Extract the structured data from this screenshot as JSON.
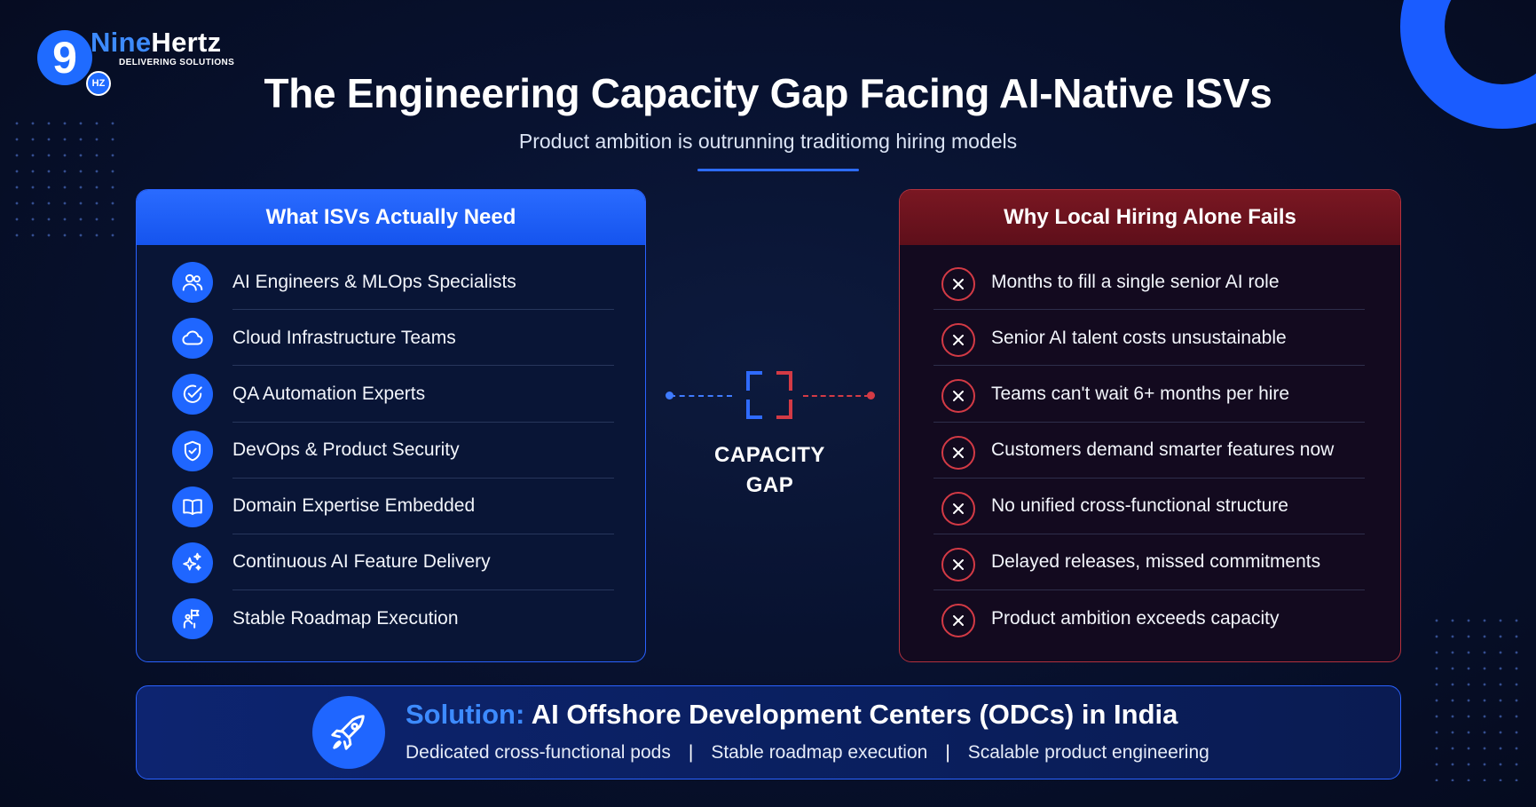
{
  "logo": {
    "badge_digit": "9",
    "name_part1": "Nine",
    "name_part2": "Hertz",
    "badge_small": "HZ",
    "tagline": "DELIVERING SOLUTIONS"
  },
  "header": {
    "title": "The Engineering Capacity Gap Facing AI-Native ISVs",
    "subtitle": "Product ambition is outrunning traditiomg hiring models"
  },
  "needs_panel": {
    "heading": "What ISVs Actually Need",
    "items": [
      {
        "label": "AI Engineers & MLOps Specialists",
        "icon": "users-icon"
      },
      {
        "label": "Cloud Infrastructure Teams",
        "icon": "cloud-icon"
      },
      {
        "label": "QA Automation Experts",
        "icon": "check-circle-icon"
      },
      {
        "label": "DevOps & Product Security",
        "icon": "shield-icon"
      },
      {
        "label": "Domain Expertise Embedded",
        "icon": "book-icon"
      },
      {
        "label": "Continuous AI Feature Delivery",
        "icon": "sparkle-icon"
      },
      {
        "label": "Stable Roadmap Execution",
        "icon": "flag-person-icon"
      }
    ]
  },
  "fails_panel": {
    "heading": "Why Local Hiring Alone Fails",
    "items": [
      {
        "label": "Months to fill a single senior AI role",
        "icon": "x-circle-icon"
      },
      {
        "label": "Senior AI talent costs unsustainable",
        "icon": "x-circle-icon"
      },
      {
        "label": "Teams can't wait 6+ months per hire",
        "icon": "x-circle-icon"
      },
      {
        "label": "Customers demand smarter features now",
        "icon": "x-circle-icon"
      },
      {
        "label": "No unified cross-functional structure",
        "icon": "x-circle-icon"
      },
      {
        "label": "Delayed releases, missed commitments",
        "icon": "x-circle-icon"
      },
      {
        "label": "Product ambition exceeds capacity",
        "icon": "x-circle-icon"
      }
    ]
  },
  "gap": {
    "line1": "CAPACITY",
    "line2": "GAP",
    "icon": "gap-bracket-icon"
  },
  "solution": {
    "prefix": "Solution:",
    "title": "AI Offshore Development Centers (ODCs) in India",
    "points": [
      "Dedicated cross-functional pods",
      "Stable roadmap execution",
      "Scalable product engineering"
    ],
    "separator": "|",
    "icon": "rocket-icon"
  },
  "colors": {
    "accent_blue": "#1f66ff",
    "accent_red": "#d33a45",
    "background": "#081230"
  }
}
